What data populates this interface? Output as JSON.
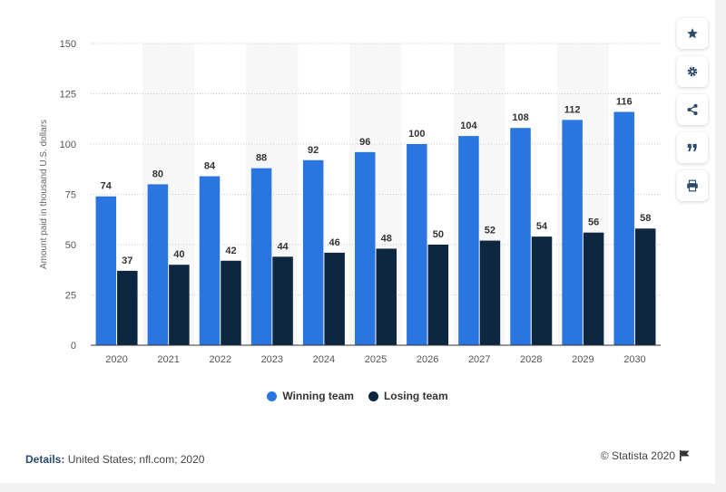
{
  "chart_data": {
    "type": "bar",
    "title": "",
    "xlabel": "",
    "ylabel": "Amount paid in thousand U.S. dollars",
    "categories": [
      "2020",
      "2021",
      "2022",
      "2023",
      "2024",
      "2025",
      "2026",
      "2027",
      "2028",
      "2029",
      "2030"
    ],
    "series": [
      {
        "name": "Winning team",
        "color": "#2a75e0",
        "values": [
          74,
          80,
          84,
          88,
          92,
          96,
          100,
          104,
          108,
          112,
          116
        ]
      },
      {
        "name": "Losing team",
        "color": "#0e2741",
        "values": [
          37,
          40,
          42,
          44,
          46,
          48,
          50,
          52,
          54,
          56,
          58
        ]
      }
    ],
    "ylim": [
      0,
      150
    ],
    "yticks": [
      "0",
      "25",
      "50",
      "75",
      "100",
      "125",
      "150"
    ],
    "grid": true,
    "legend_position": "bottom"
  },
  "footer": {
    "details_label": "Details:",
    "details_text": "United States; nfl.com; 2020",
    "credit": "© Statista 2020"
  },
  "toolbar": {
    "icons": [
      "star-icon",
      "gear-icon",
      "share-icon",
      "quote-icon",
      "print-icon"
    ]
  }
}
